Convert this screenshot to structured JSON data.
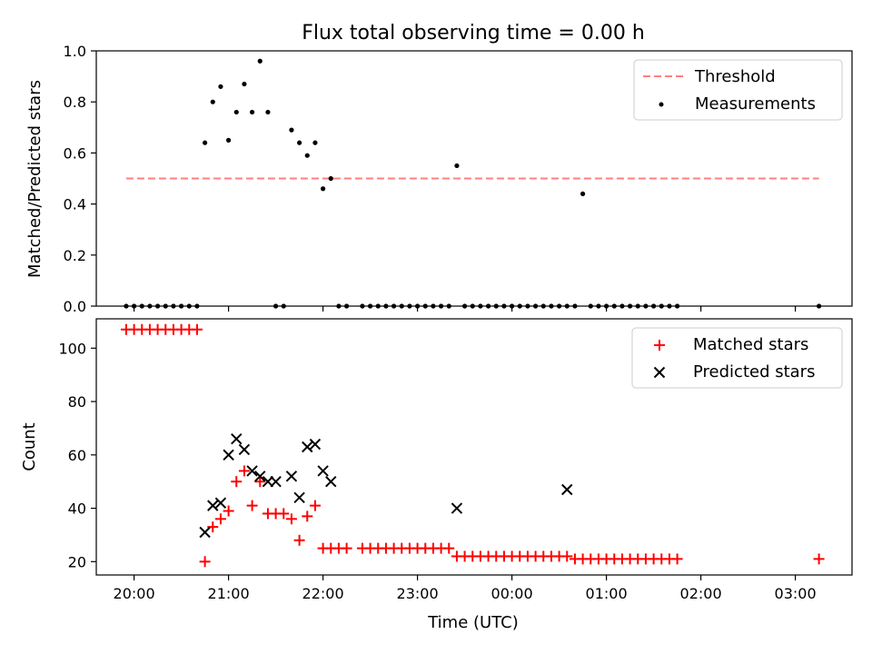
{
  "title": "Flux total observing time = 0.00 h",
  "colors": {
    "threshold": "#ff8080",
    "matched": "#ff0000",
    "predicted": "#000000",
    "measurement": "#000000"
  },
  "chart_data": [
    {
      "type": "scatter",
      "ylabel": "Matched/Predicted stars",
      "ylim": [
        0,
        1.0
      ],
      "yticks": [
        "0.0",
        "0.2",
        "0.4",
        "0.6",
        "0.8",
        "1.0"
      ],
      "legend": [
        "Threshold",
        "Measurements"
      ],
      "legend_placement": "top-right",
      "threshold": {
        "name": "Threshold",
        "y": 0.5,
        "x_range": [
          "19:55",
          "03:15"
        ]
      },
      "series": [
        {
          "name": "Measurements",
          "x": [
            "19:55",
            "20:00",
            "20:05",
            "20:10",
            "20:15",
            "20:20",
            "20:25",
            "20:30",
            "20:35",
            "20:40",
            "20:45",
            "20:50",
            "20:55",
            "21:00",
            "21:05",
            "21:10",
            "21:15",
            "21:20",
            "21:25",
            "21:30",
            "21:35",
            "21:40",
            "21:45",
            "21:50",
            "21:55",
            "22:00",
            "22:05",
            "22:10",
            "22:15",
            "22:25",
            "22:30",
            "22:35",
            "22:40",
            "22:45",
            "22:50",
            "22:55",
            "23:00",
            "23:05",
            "23:10",
            "23:15",
            "23:20",
            "23:25",
            "23:30",
            "23:35",
            "23:40",
            "23:45",
            "23:50",
            "23:55",
            "00:00",
            "00:05",
            "00:10",
            "00:15",
            "00:20",
            "00:25",
            "00:30",
            "00:35",
            "00:40",
            "00:45",
            "00:50",
            "00:55",
            "01:00",
            "01:05",
            "01:10",
            "01:15",
            "01:20",
            "01:25",
            "01:30",
            "01:35",
            "01:40",
            "01:45",
            "03:15"
          ],
          "y": [
            0,
            0,
            0,
            0,
            0,
            0,
            0,
            0,
            0,
            0,
            0.64,
            0.8,
            0.86,
            0.65,
            0.76,
            0.87,
            0.76,
            0.96,
            0.76,
            0,
            0,
            0.69,
            0.64,
            0.59,
            0.64,
            0.46,
            0.5,
            0,
            0,
            0,
            0,
            0,
            0,
            0,
            0,
            0,
            0,
            0,
            0,
            0,
            0,
            0.55,
            0,
            0,
            0,
            0,
            0,
            0,
            0,
            0,
            0,
            0,
            0,
            0,
            0,
            0,
            0,
            0.44,
            0,
            0,
            0,
            0,
            0,
            0,
            0,
            0,
            0,
            0,
            0,
            0,
            0
          ]
        }
      ]
    },
    {
      "type": "scatter",
      "xlabel": "Time (UTC)",
      "ylabel": "Count",
      "ylim": [
        15,
        111
      ],
      "yticks": [
        "20",
        "40",
        "60",
        "80",
        "100"
      ],
      "xticks": [
        "20:00",
        "21:00",
        "22:00",
        "23:00",
        "00:00",
        "01:00",
        "02:00",
        "03:00"
      ],
      "xlim": [
        "19:36",
        "03:36"
      ],
      "legend": [
        "Matched stars",
        "Predicted stars"
      ],
      "legend_placement": "top-right",
      "series": [
        {
          "name": "Matched stars",
          "marker": "+",
          "x": [
            "19:55",
            "20:00",
            "20:05",
            "20:10",
            "20:15",
            "20:20",
            "20:25",
            "20:30",
            "20:35",
            "20:40",
            "20:45",
            "20:50",
            "20:55",
            "21:00",
            "21:05",
            "21:10",
            "21:15",
            "21:20",
            "21:25",
            "21:30",
            "21:35",
            "21:40",
            "21:45",
            "21:50",
            "21:55",
            "22:00",
            "22:05",
            "22:10",
            "22:15",
            "22:25",
            "22:30",
            "22:35",
            "22:40",
            "22:45",
            "22:50",
            "22:55",
            "23:00",
            "23:05",
            "23:10",
            "23:15",
            "23:20",
            "23:25",
            "23:30",
            "23:35",
            "23:40",
            "23:45",
            "23:50",
            "23:55",
            "00:00",
            "00:05",
            "00:10",
            "00:15",
            "00:20",
            "00:25",
            "00:30",
            "00:35",
            "00:40",
            "00:45",
            "00:50",
            "00:55",
            "01:00",
            "01:05",
            "01:10",
            "01:15",
            "01:20",
            "01:25",
            "01:30",
            "01:35",
            "01:40",
            "01:45",
            "03:15"
          ],
          "y": [
            107,
            107,
            107,
            107,
            107,
            107,
            107,
            107,
            107,
            107,
            20,
            33,
            36,
            39,
            50,
            54,
            41,
            50,
            38,
            38,
            38,
            36,
            28,
            37,
            41,
            25,
            25,
            25,
            25,
            25,
            25,
            25,
            25,
            25,
            25,
            25,
            25,
            25,
            25,
            25,
            25,
            22,
            22,
            22,
            22,
            22,
            22,
            22,
            22,
            22,
            22,
            22,
            22,
            22,
            22,
            22,
            21,
            21,
            21,
            21,
            21,
            21,
            21,
            21,
            21,
            21,
            21,
            21,
            21,
            21,
            21
          ]
        },
        {
          "name": "Predicted stars",
          "marker": "x",
          "x": [
            "20:45",
            "20:50",
            "20:55",
            "21:00",
            "21:05",
            "21:10",
            "21:15",
            "21:20",
            "21:25",
            "21:30",
            "21:40",
            "21:45",
            "21:50",
            "21:55",
            "22:00",
            "22:05",
            "23:25",
            "00:35"
          ],
          "y": [
            31,
            41,
            42,
            60,
            66,
            62,
            54,
            52,
            50,
            50,
            52,
            44,
            63,
            64,
            54,
            50,
            40,
            47
          ]
        }
      ]
    }
  ]
}
